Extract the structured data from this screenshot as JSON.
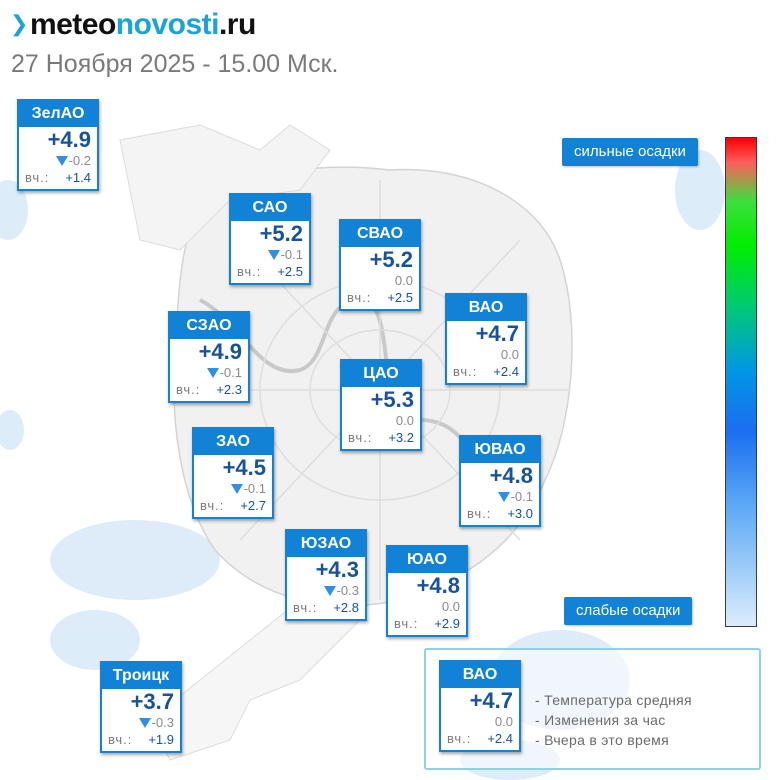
{
  "header": {
    "logo": {
      "part1": "meteo",
      "part2": "novosti",
      "part3": ".ru"
    },
    "datetime": "27 Ноября 2025 - 15.00 Мск."
  },
  "yesterday_label": "вч.:",
  "districts": [
    {
      "id": "zelao",
      "name": "ЗелАО",
      "temp": "+4.9",
      "change": "-0.2",
      "falling": true,
      "yesterday": "+1.4"
    },
    {
      "id": "sao",
      "name": "САО",
      "temp": "+5.2",
      "change": "-0.1",
      "falling": true,
      "yesterday": "+2.5"
    },
    {
      "id": "svao",
      "name": "СВАО",
      "temp": "+5.2",
      "change": "0.0",
      "falling": false,
      "yesterday": "+2.5"
    },
    {
      "id": "vao",
      "name": "ВАО",
      "temp": "+4.7",
      "change": "0.0",
      "falling": false,
      "yesterday": "+2.4"
    },
    {
      "id": "szao",
      "name": "СЗАО",
      "temp": "+4.9",
      "change": "-0.1",
      "falling": true,
      "yesterday": "+2.3"
    },
    {
      "id": "cao",
      "name": "ЦАО",
      "temp": "+5.3",
      "change": "0.0",
      "falling": false,
      "yesterday": "+3.2"
    },
    {
      "id": "zao",
      "name": "ЗАО",
      "temp": "+4.5",
      "change": "-0.1",
      "falling": true,
      "yesterday": "+2.7"
    },
    {
      "id": "yuvao",
      "name": "ЮВАО",
      "temp": "+4.8",
      "change": "-0.1",
      "falling": true,
      "yesterday": "+3.0"
    },
    {
      "id": "yuzao",
      "name": "ЮЗАО",
      "temp": "+4.3",
      "change": "-0.3",
      "falling": true,
      "yesterday": "+2.8"
    },
    {
      "id": "yuao",
      "name": "ЮАО",
      "temp": "+4.8",
      "change": "0.0",
      "falling": false,
      "yesterday": "+2.9"
    },
    {
      "id": "troick",
      "name": "Троицк",
      "temp": "+3.7",
      "change": "-0.3",
      "falling": true,
      "yesterday": "+1.9"
    }
  ],
  "precip_scale": {
    "top_label": "сильные осадки",
    "bottom_label": "слабые осадки",
    "colors": [
      "#ff0000",
      "#00ee00",
      "#1a6ef0",
      "#dcecfd"
    ]
  },
  "legend": {
    "sample": {
      "name": "ВАО",
      "temp": "+4.7",
      "change": "0.0",
      "falling": false,
      "yesterday": "+2.4"
    },
    "lines": [
      "- Температура средняя",
      "- Изменения за час",
      "- Вчера в это время"
    ]
  },
  "colors": {
    "accent": "#1282d6",
    "logo_blue": "#1aa3d9",
    "temp_text": "#16539a"
  }
}
